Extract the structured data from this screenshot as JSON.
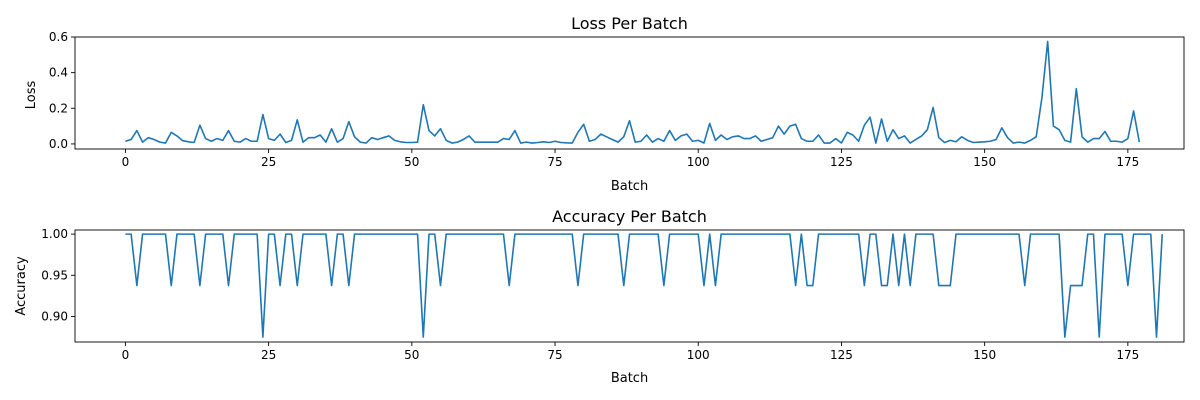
{
  "chart_data": [
    {
      "type": "line",
      "title": "Loss Per Batch",
      "xlabel": "Batch",
      "ylabel": "Loss",
      "xlim": [
        -8.8,
        184.8
      ],
      "ylim": [
        -0.0285,
        0.6
      ],
      "xticks": [
        0,
        25,
        50,
        75,
        100,
        125,
        150,
        175
      ],
      "yticks": [
        0.0,
        0.2,
        0.4,
        0.6
      ],
      "ytick_labels": [
        "0.0",
        "0.2",
        "0.4",
        "0.6"
      ],
      "grid": false,
      "color": "#1f77b4",
      "series": [
        {
          "values": [
            0.015,
            0.025,
            0.075,
            0.01,
            0.035,
            0.025,
            0.01,
            0.005,
            0.065,
            0.045,
            0.018,
            0.012,
            0.008,
            0.105,
            0.03,
            0.015,
            0.03,
            0.02,
            0.075,
            0.015,
            0.01,
            0.03,
            0.015,
            0.015,
            0.165,
            0.03,
            0.02,
            0.055,
            0.008,
            0.02,
            0.135,
            0.01,
            0.035,
            0.035,
            0.05,
            0.01,
            0.085,
            0.01,
            0.03,
            0.125,
            0.04,
            0.01,
            0.005,
            0.035,
            0.025,
            0.035,
            0.045,
            0.02,
            0.012,
            0.008,
            0.008,
            0.01,
            0.22,
            0.075,
            0.045,
            0.085,
            0.02,
            0.005,
            0.01,
            0.025,
            0.045,
            0.01,
            0.01,
            0.01,
            0.01,
            0.01,
            0.03,
            0.025,
            0.075,
            0.005,
            0.01,
            0.005,
            0.008,
            0.012,
            0.008,
            0.015,
            0.008,
            0.006,
            0.005,
            0.065,
            0.11,
            0.015,
            0.025,
            0.055,
            0.04,
            0.025,
            0.01,
            0.04,
            0.13,
            0.01,
            0.015,
            0.05,
            0.01,
            0.03,
            0.015,
            0.075,
            0.02,
            0.045,
            0.055,
            0.015,
            0.02,
            0.005,
            0.115,
            0.02,
            0.05,
            0.025,
            0.04,
            0.045,
            0.03,
            0.03,
            0.045,
            0.015,
            0.025,
            0.035,
            0.1,
            0.055,
            0.1,
            0.11,
            0.03,
            0.015,
            0.015,
            0.05,
            0.005,
            0.005,
            0.03,
            0.005,
            0.065,
            0.05,
            0.015,
            0.105,
            0.15,
            0.005,
            0.14,
            0.015,
            0.08,
            0.03,
            0.045,
            0.005,
            0.025,
            0.045,
            0.08,
            0.205,
            0.035,
            0.008,
            0.02,
            0.012,
            0.04,
            0.02,
            0.008,
            0.01,
            0.012,
            0.015,
            0.025,
            0.09,
            0.035,
            0.005,
            0.01,
            0.005,
            0.02,
            0.04,
            0.26,
            0.575,
            0.1,
            0.08,
            0.02,
            0.01,
            0.31,
            0.04,
            0.01,
            0.03,
            0.03,
            0.07,
            0.015,
            0.015,
            0.01,
            0.03,
            0.185,
            0.01
          ]
        }
      ]
    },
    {
      "type": "line",
      "title": "Accuracy Per Batch",
      "xlabel": "Batch",
      "ylabel": "Accuracy",
      "xlim": [
        -8.8,
        184.8
      ],
      "ylim": [
        0.869,
        1.005
      ],
      "xticks": [
        0,
        25,
        50,
        75,
        100,
        125,
        150,
        175
      ],
      "yticks": [
        0.9,
        0.95,
        1.0
      ],
      "ytick_labels": [
        "0.90",
        "0.95",
        "1.00"
      ],
      "grid": false,
      "color": "#1f77b4",
      "series": [
        {
          "values": [
            1,
            1,
            0.9375,
            1,
            1,
            1,
            1,
            1,
            0.9375,
            1,
            1,
            1,
            1,
            0.9375,
            1,
            1,
            1,
            1,
            0.9375,
            1,
            1,
            1,
            1,
            1,
            0.875,
            1,
            1,
            0.9375,
            1,
            1,
            0.9375,
            1,
            1,
            1,
            1,
            1,
            0.9375,
            1,
            1,
            0.9375,
            1,
            1,
            1,
            1,
            1,
            1,
            1,
            1,
            1,
            1,
            1,
            1,
            0.875,
            1,
            1,
            0.9375,
            1,
            1,
            1,
            1,
            1,
            1,
            1,
            1,
            1,
            1,
            1,
            0.9375,
            1,
            1,
            1,
            1,
            1,
            1,
            1,
            1,
            1,
            1,
            1,
            0.9375,
            1,
            1,
            1,
            1,
            1,
            1,
            1,
            0.9375,
            1,
            1,
            1,
            1,
            1,
            1,
            0.9375,
            1,
            1,
            1,
            1,
            1,
            1,
            0.9375,
            1,
            0.9375,
            1,
            1,
            1,
            1,
            1,
            1,
            1,
            1,
            1,
            1,
            1,
            1,
            1,
            0.9375,
            1,
            0.9375,
            0.9375,
            1,
            1,
            1,
            1,
            1,
            1,
            1,
            1,
            0.9375,
            1,
            1,
            0.9375,
            0.9375,
            1,
            0.9375,
            1,
            0.9375,
            1,
            1,
            1,
            1,
            0.9375,
            0.9375,
            0.9375,
            1,
            1,
            1,
            1,
            1,
            1,
            1,
            1,
            1,
            1,
            1,
            1,
            0.9375,
            1,
            1,
            1,
            1,
            1,
            1,
            0.875,
            0.9375,
            0.9375,
            0.9375,
            1,
            1,
            0.875,
            1,
            1,
            1,
            1,
            0.9375,
            1,
            1,
            1,
            1,
            0.875,
            1
          ]
        }
      ]
    }
  ]
}
